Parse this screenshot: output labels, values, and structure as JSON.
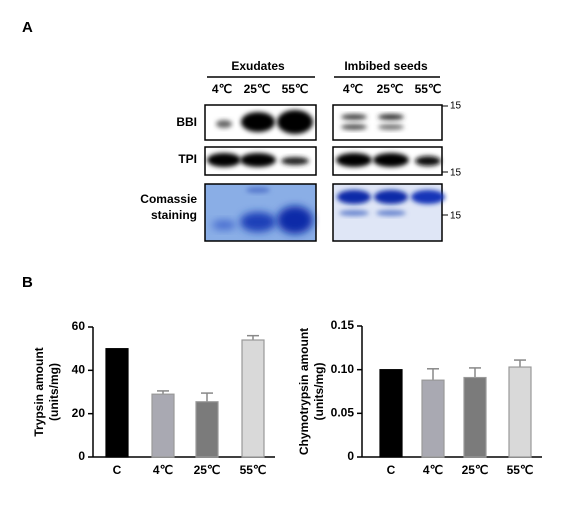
{
  "panel_a": {
    "label": "A",
    "groups": [
      "Exudates",
      "Imbibed seeds"
    ],
    "lanes": [
      [
        "4℃",
        "25℃",
        "55℃"
      ],
      [
        "4℃",
        "25℃",
        "55℃"
      ]
    ],
    "rows": [
      "BBI",
      "TPI",
      "Comassie",
      "staining"
    ],
    "markers": [
      "15",
      "15",
      "15"
    ]
  },
  "panel_b": {
    "label": "B"
  },
  "chart_data": [
    {
      "type": "bar",
      "ylabel": [
        "Trypsin amount",
        "(units/mg)"
      ],
      "categories": [
        "C",
        "4℃",
        "25℃",
        "55℃"
      ],
      "values": [
        50,
        29,
        25.5,
        54
      ],
      "errors": [
        0,
        1.5,
        4,
        2
      ],
      "colors": [
        "#000000",
        "#a9a9b2",
        "#7b7b7b",
        "#d9d9d9"
      ],
      "ylim": [
        0,
        60
      ],
      "yticks": [
        0,
        20,
        40,
        60
      ]
    },
    {
      "type": "bar",
      "ylabel": [
        "Chymotrypsin amount",
        "(units/mg)"
      ],
      "categories": [
        "C",
        "4℃",
        "25℃",
        "55℃"
      ],
      "values": [
        0.1,
        0.088,
        0.091,
        0.103
      ],
      "errors": [
        0,
        0.013,
        0.011,
        0.008
      ],
      "colors": [
        "#000000",
        "#a9a9b2",
        "#7b7b7b",
        "#d9d9d9"
      ],
      "ylim": [
        0,
        0.15
      ],
      "yticks": [
        0,
        0.05,
        {
          "value": 0.1,
          "label": "0.10"
        },
        0.15
      ]
    }
  ]
}
